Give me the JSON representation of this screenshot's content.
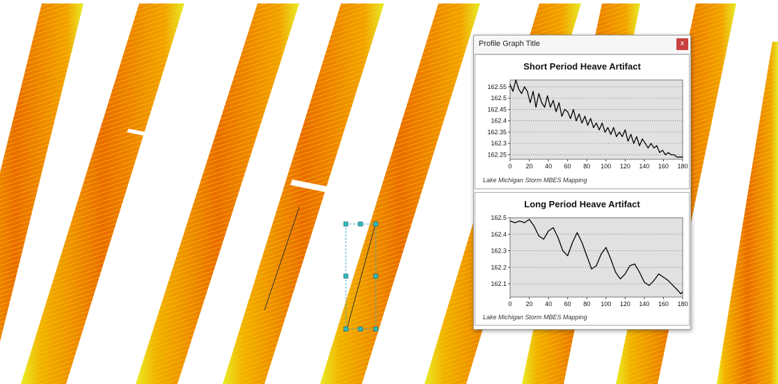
{
  "window": {
    "title": "Profile Graph Title",
    "close_label": "x"
  },
  "colors": {
    "swath_base": "#f2b200",
    "swath_dark": "#ea6a00",
    "swath_edge": "#e6ee2a",
    "selection_handle": "#2fbdbd",
    "plot_background": "#e1e1e1",
    "close_button": "#c9413f"
  },
  "map_icons": [
    "profile-line-icon",
    "selection-handle-icon"
  ],
  "chart_data": [
    {
      "type": "line",
      "title": "Short Period Heave Artifact",
      "footer": "Lake Michigan Storm MBES Mapping",
      "xlabel": "",
      "ylabel": "",
      "xlim": [
        0,
        180
      ],
      "ylim": [
        162.23,
        162.58
      ],
      "x_ticks": [
        0,
        20,
        40,
        60,
        80,
        100,
        120,
        140,
        160,
        180
      ],
      "y_ticks": [
        162.25,
        162.3,
        162.35,
        162.4,
        162.45,
        162.5,
        162.55
      ],
      "y_tick_labels": [
        "162.25",
        "162.3",
        "162.35",
        "162.4",
        "162.45",
        "162.5",
        "162.55"
      ],
      "grid": "horizontal",
      "series": [
        {
          "x": [
            0,
            3,
            6,
            9,
            12,
            15,
            18,
            21,
            24,
            27,
            30,
            33,
            36,
            39,
            42,
            45,
            48,
            51,
            54,
            57,
            60,
            63,
            66,
            69,
            72,
            75,
            78,
            81,
            84,
            87,
            90,
            93,
            96,
            99,
            102,
            105,
            108,
            111,
            114,
            117,
            120,
            123,
            126,
            129,
            132,
            135,
            138,
            141,
            144,
            147,
            150,
            153,
            156,
            159,
            162,
            165,
            168,
            171,
            174,
            177,
            180
          ],
          "values": [
            162.56,
            162.53,
            162.58,
            162.54,
            162.52,
            162.55,
            162.53,
            162.48,
            162.53,
            162.46,
            162.52,
            162.48,
            162.46,
            162.51,
            162.46,
            162.49,
            162.44,
            162.48,
            162.42,
            162.45,
            162.44,
            162.41,
            162.45,
            162.4,
            162.43,
            162.39,
            162.42,
            162.38,
            162.41,
            162.37,
            162.39,
            162.36,
            162.39,
            162.35,
            162.37,
            162.34,
            162.37,
            162.33,
            162.35,
            162.33,
            162.36,
            162.31,
            162.34,
            162.3,
            162.33,
            162.29,
            162.32,
            162.3,
            162.28,
            162.3,
            162.28,
            162.29,
            162.26,
            162.27,
            162.25,
            162.26,
            162.25,
            162.25,
            162.24,
            162.24,
            162.24
          ]
        }
      ]
    },
    {
      "type": "line",
      "title": "Long Period Heave Artifact",
      "footer": "Lake Michigan Storm MBES Mapping",
      "xlabel": "",
      "ylabel": "",
      "xlim": [
        0,
        180
      ],
      "ylim": [
        162.02,
        162.5
      ],
      "x_ticks": [
        0,
        20,
        40,
        60,
        80,
        100,
        120,
        140,
        160,
        180
      ],
      "y_ticks": [
        162.1,
        162.2,
        162.3,
        162.4,
        162.5
      ],
      "y_tick_labels": [
        "162.1",
        "162.2",
        "162.3",
        "162.4",
        "162.5"
      ],
      "grid": "horizontal",
      "series": [
        {
          "x": [
            0,
            5,
            10,
            15,
            20,
            25,
            30,
            35,
            40,
            45,
            50,
            55,
            60,
            65,
            70,
            75,
            80,
            85,
            90,
            95,
            100,
            105,
            110,
            115,
            120,
            125,
            130,
            135,
            140,
            145,
            150,
            155,
            160,
            165,
            170,
            175,
            178,
            180
          ],
          "values": [
            162.48,
            162.47,
            162.48,
            162.47,
            162.49,
            162.45,
            162.39,
            162.37,
            162.42,
            162.44,
            162.38,
            162.3,
            162.27,
            162.35,
            162.41,
            162.35,
            162.27,
            162.19,
            162.21,
            162.28,
            162.32,
            162.25,
            162.17,
            162.13,
            162.16,
            162.21,
            162.22,
            162.17,
            162.11,
            162.09,
            162.12,
            162.16,
            162.14,
            162.12,
            162.09,
            162.06,
            162.04,
            162.05
          ]
        }
      ]
    }
  ]
}
